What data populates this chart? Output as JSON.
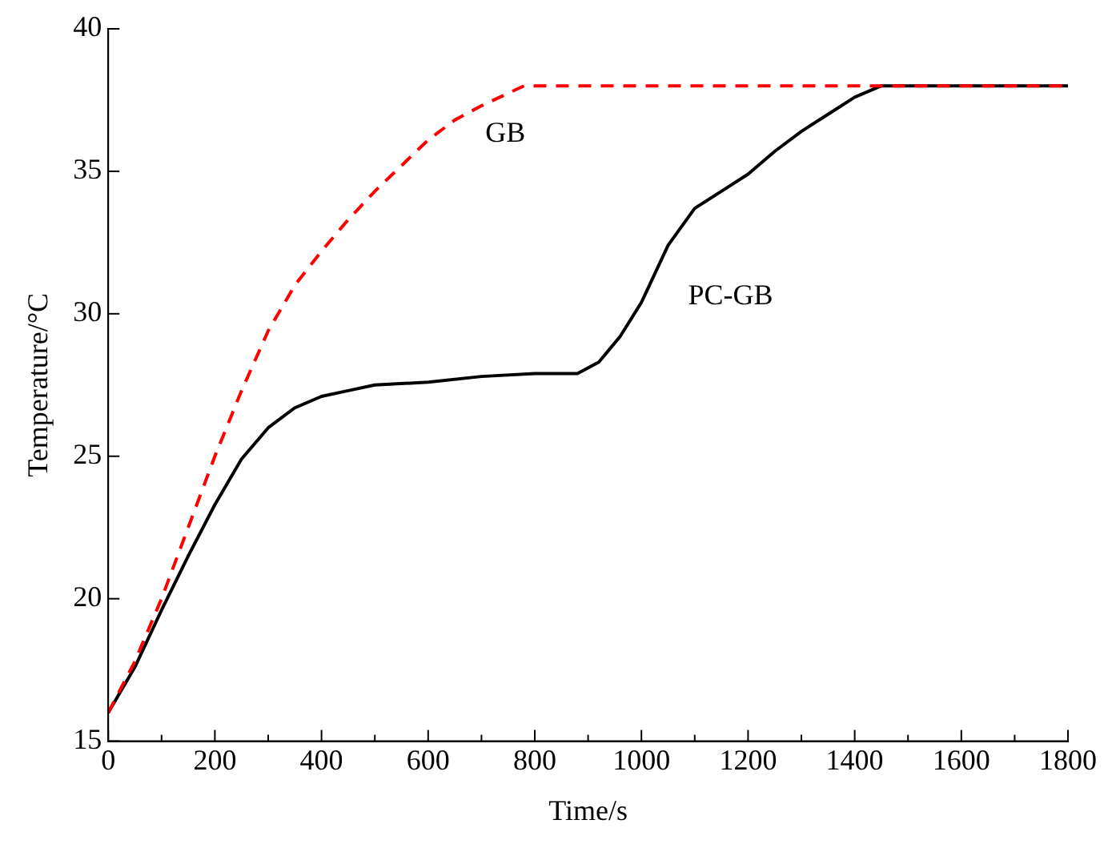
{
  "chart_data": {
    "type": "line",
    "xlabel": "Time/s",
    "ylabel": "Temperature/°C",
    "legend": false,
    "grid": false,
    "marker": "none",
    "xlim": [
      0,
      1800
    ],
    "xticks": [
      0,
      {
        "value": 100,
        "label": null
      },
      200,
      {
        "value": 300,
        "label": null
      },
      400,
      {
        "value": 500,
        "label": null
      },
      600,
      {
        "value": 700,
        "label": null
      },
      800,
      {
        "value": 900,
        "label": null
      },
      1000,
      {
        "value": 1100,
        "label": null
      },
      1200,
      {
        "value": 1300,
        "label": null
      },
      1400,
      {
        "value": 1500,
        "label": null
      },
      1600,
      {
        "value": 1700,
        "label": null
      },
      1800
    ],
    "ylim": [
      15,
      40
    ],
    "yticks": [
      15,
      20,
      25,
      30,
      35,
      40
    ],
    "series": [
      {
        "name": "GB",
        "color": "#ff0000",
        "line_style": "dashed",
        "x": [
          0,
          50,
          100,
          150,
          200,
          250,
          300,
          350,
          400,
          450,
          500,
          550,
          600,
          650,
          700,
          780,
          1800
        ],
        "values": [
          16,
          17.8,
          20,
          22.5,
          25,
          27.3,
          29.4,
          31,
          32.2,
          33.3,
          34.3,
          35.2,
          36.1,
          36.8,
          37.3,
          38,
          38
        ]
      },
      {
        "name": "PC-GB",
        "color": "#000000",
        "line_style": "solid",
        "x": [
          0,
          50,
          100,
          150,
          200,
          250,
          300,
          350,
          400,
          450,
          500,
          600,
          700,
          800,
          880,
          920,
          960,
          1000,
          1050,
          1100,
          1150,
          1200,
          1250,
          1300,
          1350,
          1400,
          1450,
          1800
        ],
        "values": [
          16,
          17.6,
          19.6,
          21.5,
          23.3,
          24.9,
          26,
          26.7,
          27.1,
          27.3,
          27.5,
          27.6,
          27.8,
          27.9,
          27.9,
          28.3,
          29.2,
          30.4,
          32.4,
          33.7,
          34.3,
          34.9,
          35.7,
          36.4,
          37,
          37.6,
          38,
          38
        ]
      }
    ]
  }
}
